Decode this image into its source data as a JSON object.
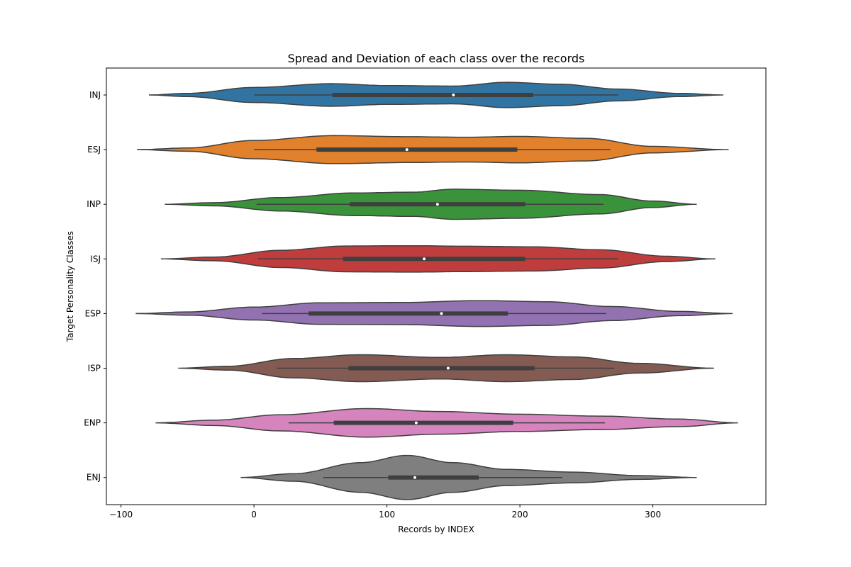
{
  "chart_data": {
    "type": "violin",
    "orientation": "horizontal",
    "title": "Spread and Deviation of each class over the records",
    "xlabel": "Records by INDEX",
    "ylabel": "Target Personality Classes",
    "xlim": [
      -111,
      385
    ],
    "xticks": [
      -100,
      0,
      100,
      200,
      300
    ],
    "xtick_labels": [
      "−100",
      "0",
      "100",
      "200",
      "300"
    ],
    "grid": false,
    "categories": [
      "INJ",
      "ESJ",
      "INP",
      "ISJ",
      "ESP",
      "ISP",
      "ENP",
      "ENJ"
    ],
    "series": [
      {
        "category": "INJ",
        "color": "#3274a1",
        "stats": {
          "min": 0,
          "q1": 59,
          "median": 150,
          "q3": 210,
          "max": 274
        },
        "kde_range": [
          -79,
          353
        ],
        "density": [
          [
            -79,
            0.0
          ],
          [
            -50,
            0.06
          ],
          [
            0,
            0.28
          ],
          [
            59,
            0.42
          ],
          [
            100,
            0.35
          ],
          [
            150,
            0.33
          ],
          [
            190,
            0.47
          ],
          [
            230,
            0.4
          ],
          [
            274,
            0.22
          ],
          [
            320,
            0.06
          ],
          [
            353,
            0.0
          ]
        ]
      },
      {
        "category": "ESJ",
        "color": "#e1812c",
        "stats": {
          "min": 0,
          "q1": 47,
          "median": 115,
          "q3": 198,
          "max": 268
        },
        "kde_range": [
          -88,
          357
        ],
        "density": [
          [
            -88,
            0.0
          ],
          [
            -50,
            0.06
          ],
          [
            0,
            0.34
          ],
          [
            60,
            0.52
          ],
          [
            115,
            0.48
          ],
          [
            160,
            0.46
          ],
          [
            200,
            0.49
          ],
          [
            250,
            0.42
          ],
          [
            300,
            0.12
          ],
          [
            357,
            0.0
          ]
        ]
      },
      {
        "category": "INP",
        "color": "#3a923a",
        "stats": {
          "min": 2,
          "q1": 72,
          "median": 138,
          "q3": 204,
          "max": 263
        },
        "kde_range": [
          -67,
          333
        ],
        "density": [
          [
            -67,
            0.0
          ],
          [
            -30,
            0.06
          ],
          [
            20,
            0.25
          ],
          [
            75,
            0.42
          ],
          [
            120,
            0.45
          ],
          [
            150,
            0.56
          ],
          [
            200,
            0.52
          ],
          [
            260,
            0.36
          ],
          [
            300,
            0.12
          ],
          [
            333,
            0.0
          ]
        ]
      },
      {
        "category": "ISJ",
        "color": "#c03d3e",
        "stats": {
          "min": 3,
          "q1": 67,
          "median": 128,
          "q3": 204,
          "max": 274
        },
        "kde_range": [
          -70,
          347
        ],
        "density": [
          [
            -70,
            0.0
          ],
          [
            -30,
            0.07
          ],
          [
            20,
            0.32
          ],
          [
            70,
            0.48
          ],
          [
            120,
            0.49
          ],
          [
            160,
            0.47
          ],
          [
            210,
            0.45
          ],
          [
            260,
            0.34
          ],
          [
            310,
            0.1
          ],
          [
            347,
            0.0
          ]
        ]
      },
      {
        "category": "ESP",
        "color": "#9372b2",
        "stats": {
          "min": 6,
          "q1": 41,
          "median": 141,
          "q3": 191,
          "max": 265
        },
        "kde_range": [
          -89,
          360
        ],
        "density": [
          [
            -89,
            0.0
          ],
          [
            -50,
            0.06
          ],
          [
            0,
            0.24
          ],
          [
            50,
            0.4
          ],
          [
            110,
            0.41
          ],
          [
            170,
            0.48
          ],
          [
            220,
            0.44
          ],
          [
            270,
            0.26
          ],
          [
            320,
            0.08
          ],
          [
            360,
            0.0
          ]
        ]
      },
      {
        "category": "ISP",
        "color": "#845b53",
        "stats": {
          "min": 17,
          "q1": 71,
          "median": 146,
          "q3": 211,
          "max": 271
        },
        "kde_range": [
          -57,
          346
        ],
        "density": [
          [
            -57,
            0.0
          ],
          [
            -20,
            0.07
          ],
          [
            30,
            0.36
          ],
          [
            80,
            0.5
          ],
          [
            140,
            0.4
          ],
          [
            190,
            0.5
          ],
          [
            240,
            0.42
          ],
          [
            290,
            0.18
          ],
          [
            346,
            0.0
          ]
        ]
      },
      {
        "category": "ENP",
        "color": "#d684bd",
        "stats": {
          "min": 26,
          "q1": 60,
          "median": 122,
          "q3": 195,
          "max": 264
        },
        "kde_range": [
          -74,
          364
        ],
        "density": [
          [
            -74,
            0.0
          ],
          [
            -30,
            0.1
          ],
          [
            20,
            0.3
          ],
          [
            85,
            0.53
          ],
          [
            140,
            0.42
          ],
          [
            200,
            0.32
          ],
          [
            260,
            0.25
          ],
          [
            320,
            0.14
          ],
          [
            364,
            0.0
          ]
        ]
      },
      {
        "category": "ENJ",
        "color": "#7f7f7f",
        "stats": {
          "min": 52,
          "q1": 101,
          "median": 121,
          "q3": 169,
          "max": 232
        },
        "kde_range": [
          -10,
          333
        ],
        "density": [
          [
            -10,
            0.0
          ],
          [
            30,
            0.14
          ],
          [
            80,
            0.55
          ],
          [
            115,
            0.82
          ],
          [
            150,
            0.55
          ],
          [
            190,
            0.3
          ],
          [
            240,
            0.2
          ],
          [
            290,
            0.07
          ],
          [
            333,
            0.0
          ]
        ]
      }
    ]
  }
}
